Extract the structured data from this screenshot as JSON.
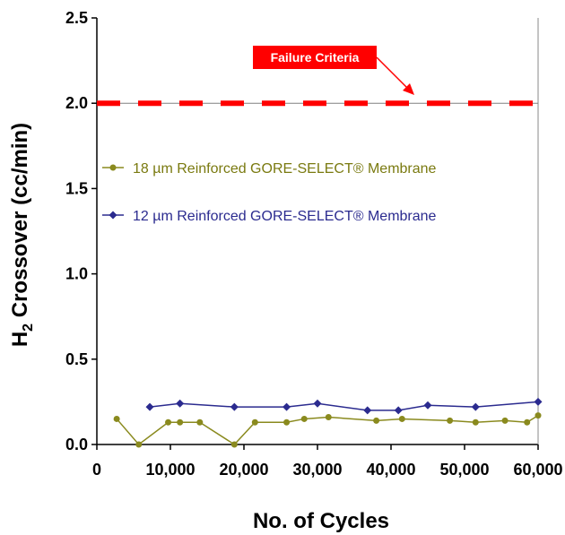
{
  "chart_data": {
    "type": "line",
    "xlabel": "No. of Cycles",
    "ylabel_main": "H",
    "ylabel_sub": "2",
    "ylabel_rest": " Crossover (cc/min)",
    "xlim": [
      0,
      60000
    ],
    "ylim": [
      0,
      2.5
    ],
    "xticks": [
      0,
      10000,
      20000,
      30000,
      40000,
      50000,
      60000
    ],
    "xtick_labels": [
      "0",
      "10,000",
      "20,000",
      "30,000",
      "40,000",
      "50,000",
      "60,000"
    ],
    "yticks": [
      0,
      0.5,
      1.0,
      1.5,
      2.0,
      2.5
    ],
    "ytick_labels": [
      "0.0",
      "0.5",
      "1.0",
      "1.5",
      "2.0",
      "2.5"
    ],
    "grid": false,
    "legend_position": "left",
    "series": [
      {
        "name": "18 µm Reinforced GORE-SELECT® Membrane",
        "color": "#8a8a1e",
        "marker": "circle",
        "x": [
          2700,
          5700,
          9700,
          11300,
          14000,
          18700,
          21500,
          25800,
          28200,
          31500,
          38000,
          41500,
          48000,
          51500,
          55500,
          58500,
          60000
        ],
        "y": [
          0.15,
          0.0,
          0.13,
          0.13,
          0.13,
          0.0,
          0.13,
          0.13,
          0.15,
          0.16,
          0.14,
          0.15,
          0.14,
          0.13,
          0.14,
          0.13,
          0.17
        ]
      },
      {
        "name": "12 µm Reinforced GORE-SELECT® Membrane",
        "color": "#2b2b8f",
        "marker": "diamond",
        "x": [
          7200,
          11300,
          18700,
          25800,
          30000,
          36800,
          41000,
          45000,
          51500,
          60000
        ],
        "y": [
          0.22,
          0.24,
          0.22,
          0.22,
          0.24,
          0.2,
          0.2,
          0.23,
          0.22,
          0.25
        ]
      }
    ],
    "reference_line": {
      "label": "Failure Criteria",
      "y": 2.0,
      "color": "#ff0000"
    }
  }
}
